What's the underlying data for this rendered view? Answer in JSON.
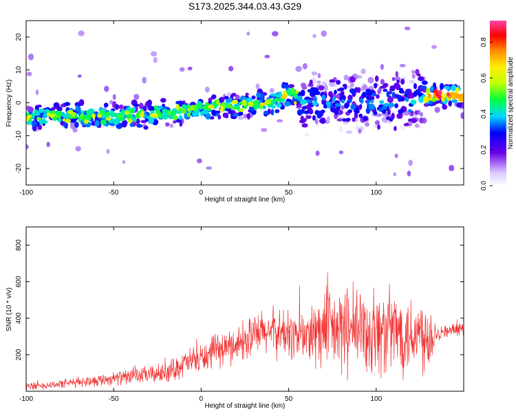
{
  "title": "S173.2025.344.03.43.G29",
  "chart_data": [
    {
      "type": "heatmap",
      "xlabel": "Height of straight line (km)",
      "ylabel": "Frequency (Hz)",
      "xlim": [
        -100,
        150
      ],
      "ylim": [
        -25,
        25
      ],
      "x_ticks": [
        -100,
        -50,
        0,
        50,
        100
      ],
      "y_ticks": [
        -20,
        -10,
        0,
        10,
        20
      ],
      "colorbar": {
        "label": "Normalized spectral amplitude",
        "range": [
          0,
          0.92
        ],
        "ticks": [
          0.0,
          0.2,
          0.4,
          0.6,
          0.8
        ]
      },
      "ridge": {
        "x": [
          -100,
          -80,
          -60,
          -40,
          -20,
          0,
          20,
          40,
          50,
          60,
          80,
          100,
          120,
          130,
          145
        ],
        "frequency": [
          -4.5,
          -4,
          -4,
          -4,
          -3,
          -1.5,
          -1,
          0,
          2.5,
          0,
          0,
          0,
          0,
          2.5,
          2.5
        ]
      }
    },
    {
      "type": "line",
      "xlabel": "Height of straight line (km)",
      "ylabel": "SNR (10 * v/v)",
      "xlim": [
        -100,
        150
      ],
      "ylim": [
        0,
        900
      ],
      "x_ticks": [
        -100,
        -50,
        0,
        50,
        100
      ],
      "y_ticks": [
        200,
        400,
        600,
        800
      ],
      "series": [
        {
          "color": "#f03030",
          "envelope": {
            "x": [
              -100,
              -80,
              -60,
              -40,
              -20,
              -10,
              0,
              10,
              20,
              30,
              40,
              50,
              60,
              70,
              80,
              90,
              100,
              110,
              120,
              130,
              135,
              140,
              150
            ],
            "mean": [
              25,
              40,
              60,
              80,
              100,
              150,
              180,
              220,
              260,
              300,
              330,
              310,
              300,
              330,
              330,
              330,
              320,
              330,
              320,
              310,
              320,
              330,
              340
            ],
            "spread": [
              25,
              30,
              40,
              50,
              70,
              90,
              100,
              110,
              120,
              150,
              160,
              170,
              200,
              280,
              300,
              300,
              300,
              290,
              280,
              260,
              60,
              40,
              40
            ]
          }
        }
      ]
    }
  ]
}
